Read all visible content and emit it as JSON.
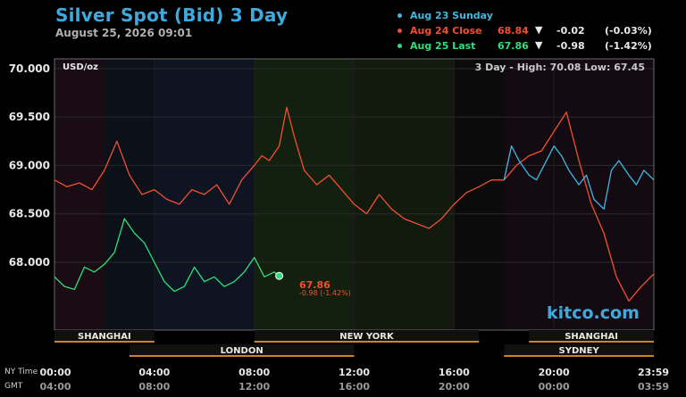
{
  "chart_data": {
    "type": "line",
    "title": "Silver Spot (Bid) 3 Day",
    "subtitle": "August 25, 2026 09:01",
    "unit_label": "USD/oz",
    "range_label": "3 Day - High: 70.08  Low: 67.45",
    "ylim": [
      67.3,
      70.1
    ],
    "yticks": [
      "70.000",
      "69.500",
      "69.000",
      "68.500",
      "68.000"
    ],
    "ytick_values": [
      70.0,
      69.5,
      69.0,
      68.5,
      68.0
    ],
    "xticks_ny": [
      "00:00",
      "04:00",
      "08:00",
      "12:00",
      "16:00",
      "20:00",
      "23:59"
    ],
    "xticks_gmt": [
      "04:00",
      "08:00",
      "12:00",
      "16:00",
      "20:00",
      "00:00",
      "03:59"
    ],
    "ny_time_label": "NY Time",
    "gmt_label": "GMT",
    "x_hours_range": [
      0,
      24
    ],
    "legend": [
      {
        "label": "Aug 23 Sunday",
        "color": "#3fb8e0",
        "price": "",
        "arrow": "",
        "change": "",
        "pct": ""
      },
      {
        "label": "Aug 24 Close",
        "color": "#f05030",
        "price": "68.84",
        "arrow": "▼",
        "change": "-0.02",
        "pct": "(-0.03%)"
      },
      {
        "label": "Aug 25 Last",
        "color": "#2ee07a",
        "price": "67.86",
        "arrow": "▼",
        "change": "-0.98",
        "pct": "(-1.42%)"
      }
    ],
    "last_annotation": {
      "value": "67.86",
      "change": "-0.98 (-1.42%)"
    },
    "series": [
      {
        "name": "Aug 24 Close",
        "color": "#f05030",
        "x": [
          0,
          0.5,
          1,
          1.5,
          2,
          2.5,
          3,
          3.5,
          4,
          4.5,
          5,
          5.5,
          6,
          6.5,
          7,
          7.5,
          8,
          8.3,
          8.6,
          9,
          9.3,
          9.6,
          10,
          10.5,
          11,
          11.5,
          12,
          12.5,
          13,
          13.5,
          14,
          14.5,
          15,
          15.5,
          16,
          16.5,
          17,
          17.5,
          18,
          18.5,
          19,
          19.5,
          20,
          20.5,
          21,
          21.5,
          22,
          22.5,
          23,
          23.5,
          24
        ],
        "y": [
          68.85,
          68.78,
          68.82,
          68.75,
          68.95,
          69.25,
          68.9,
          68.7,
          68.75,
          68.65,
          68.6,
          68.75,
          68.7,
          68.8,
          68.6,
          68.85,
          69.0,
          69.1,
          69.05,
          69.2,
          69.6,
          69.3,
          68.95,
          68.8,
          68.9,
          68.75,
          68.6,
          68.5,
          68.7,
          68.55,
          68.45,
          68.4,
          68.35,
          68.45,
          68.6,
          68.72,
          68.78,
          68.85,
          68.85,
          69.0,
          69.1,
          69.15,
          69.35,
          69.55,
          69.05,
          68.6,
          68.3,
          67.85,
          67.6,
          67.75,
          67.88
        ]
      },
      {
        "name": "Aug 23 Sunday",
        "color": "#3fb8e0",
        "x": [
          18,
          18.3,
          18.6,
          19,
          19.3,
          19.6,
          20,
          20.3,
          20.6,
          21,
          21.3,
          21.6,
          22,
          22.3,
          22.6,
          23,
          23.3,
          23.6,
          24
        ],
        "y": [
          68.85,
          69.2,
          69.05,
          68.9,
          68.85,
          69.0,
          69.2,
          69.1,
          68.95,
          68.8,
          68.9,
          68.65,
          68.55,
          68.95,
          69.05,
          68.9,
          68.8,
          68.95,
          68.85
        ]
      },
      {
        "name": "Aug 25 Last",
        "color": "#2ee07a",
        "x": [
          0,
          0.4,
          0.8,
          1.2,
          1.6,
          2.0,
          2.4,
          2.8,
          3.2,
          3.6,
          4.0,
          4.4,
          4.8,
          5.2,
          5.6,
          6.0,
          6.4,
          6.8,
          7.2,
          7.6,
          8.0,
          8.4,
          8.8,
          9.0
        ],
        "y": [
          67.85,
          67.75,
          67.72,
          67.95,
          67.9,
          67.98,
          68.1,
          68.45,
          68.3,
          68.2,
          68.0,
          67.8,
          67.7,
          67.75,
          67.95,
          67.8,
          67.85,
          67.75,
          67.8,
          67.9,
          68.05,
          67.85,
          67.9,
          67.86
        ]
      }
    ],
    "sessions": [
      {
        "name": "SHANGHAI",
        "row": 1,
        "start": 0,
        "end": 4
      },
      {
        "name": "LONDON",
        "row": 2,
        "start": 3,
        "end": 12
      },
      {
        "name": "NEW YORK",
        "row": 1,
        "start": 8,
        "end": 17
      },
      {
        "name": "SHANGHAI",
        "row": 1,
        "start": 19,
        "end": 24
      },
      {
        "name": "SYDNEY",
        "row": 2,
        "start": 18,
        "end": 24
      }
    ],
    "grid": true
  },
  "brand": "kitco.com"
}
